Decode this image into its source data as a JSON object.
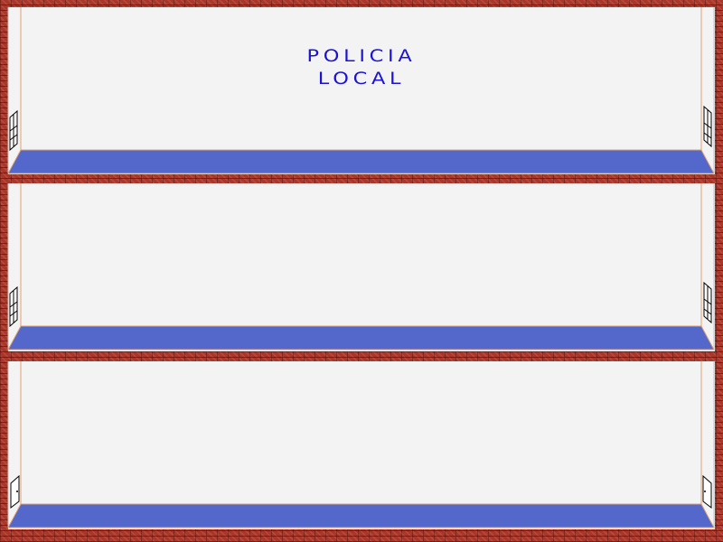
{
  "sign": {
    "line1": "POLICIA",
    "line2": "LOCAL"
  },
  "floors": [
    {
      "name": "floor-top",
      "side_feature": "window"
    },
    {
      "name": "floor-middle",
      "side_feature": "window"
    },
    {
      "name": "floor-ground",
      "side_feature": "door"
    }
  ],
  "colors": {
    "brick": "#a8362a",
    "wall": "#f3f3f3",
    "floor_blue": "#5468cc",
    "sign_text": "#1a12d6",
    "side_line": "#e0a070"
  }
}
